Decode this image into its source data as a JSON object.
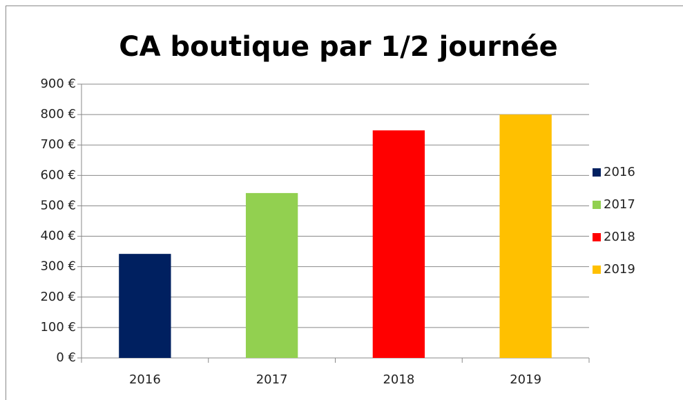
{
  "chart_data": {
    "type": "bar",
    "title": "CA boutique par 1/2 journée",
    "categories": [
      "2016",
      "2017",
      "2018",
      "2019"
    ],
    "values": [
      342,
      542,
      748,
      800
    ],
    "colors": [
      "#002060",
      "#92d050",
      "#ff0000",
      "#ffc000"
    ],
    "ylim": [
      0,
      900
    ],
    "yticks": [
      {
        "value": 0,
        "label": "0 €"
      },
      {
        "value": 100,
        "label": "100 €"
      },
      {
        "value": 200,
        "label": "200 €"
      },
      {
        "value": 300,
        "label": "300 €"
      },
      {
        "value": 400,
        "label": "400 €"
      },
      {
        "value": 500,
        "label": "500 €"
      },
      {
        "value": 600,
        "label": "600 €"
      },
      {
        "value": 700,
        "label": "700 €"
      },
      {
        "value": 800,
        "label": "800 €"
      },
      {
        "value": 900,
        "label": "900 €"
      }
    ],
    "grid": true,
    "legend": "right"
  }
}
